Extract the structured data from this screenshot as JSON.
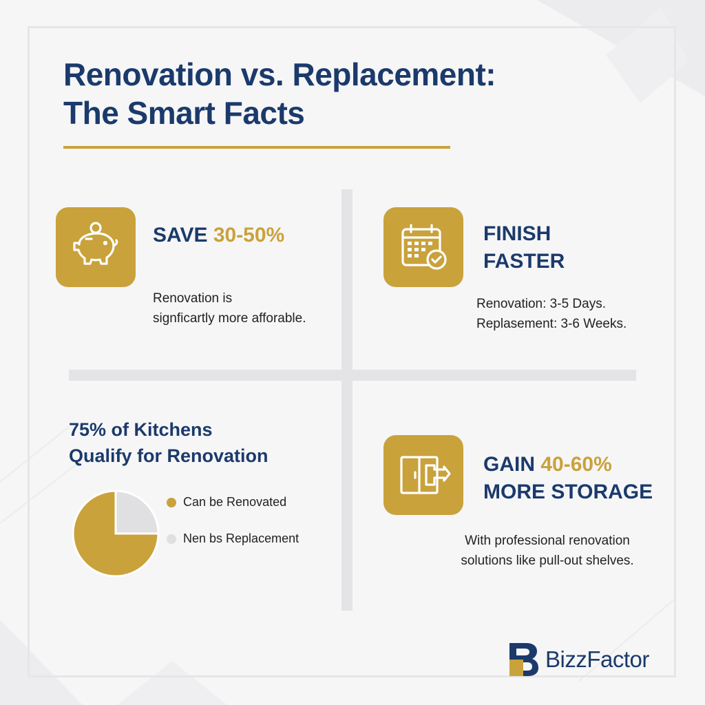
{
  "colors": {
    "navy": "#1b3a6b",
    "gold": "#c9a23c",
    "divider": "#e4e4e6",
    "slice_gray": "#e0e0e2"
  },
  "title": {
    "line1": "Renovation vs. Replacement:",
    "line2": "The Smart Facts"
  },
  "cards": {
    "save": {
      "icon": "piggy-bank-icon",
      "headline_prefix": "SAVE ",
      "headline_highlight": "30-50%",
      "body_line1": "Renovation is",
      "body_line2": "signficartly more afforable."
    },
    "finish": {
      "icon": "calendar-check-icon",
      "headline_line1": "FINISH",
      "headline_line2": "FASTER",
      "body_line1": "Renovation: 3-5 Days.",
      "body_line2": "Replasement: 3-6 Weeks."
    },
    "qualify": {
      "title_line1": "75% of Kitchens",
      "title_line2": "Qualify for Renovation",
      "legend": [
        {
          "label": "Can be Renovated",
          "color": "#c9a23c"
        },
        {
          "label": "Nen bs Replacement",
          "color": "#e0e0e2"
        }
      ]
    },
    "storage": {
      "icon": "cabinet-pullout-icon",
      "headline_prefix": "GAIN ",
      "headline_highlight": "40-60%",
      "headline_line2": "MORE STORAGE",
      "body_line1": "With professional renovation",
      "body_line2": "solutions like pull-out shelves."
    }
  },
  "chart_data": {
    "type": "pie",
    "categories": [
      "Can be Renovated",
      "Nen bs Replacement"
    ],
    "values": [
      75,
      25
    ]
  },
  "brand": {
    "name": "BizzFactor",
    "icon": "bizzfactor-logo-icon"
  }
}
